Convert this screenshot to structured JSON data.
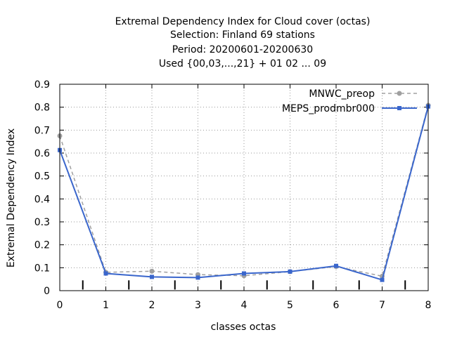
{
  "chart_data": {
    "type": "line",
    "title_lines": [
      "Extremal Dependency Index  for Cloud cover (octas)",
      "Selection: Finland     69 stations",
      "Period: 20200601-20200630",
      "Used {00,03,...,21} + 01 02 ... 09"
    ],
    "xlabel": "classes octas",
    "ylabel": "Extremal Dependency Index",
    "xlim": [
      0,
      8
    ],
    "ylim": [
      0,
      0.9
    ],
    "xticks": [
      "0",
      "1",
      "2",
      "3",
      "4",
      "5",
      "6",
      "7",
      "8"
    ],
    "yticks": [
      "0",
      "0.1",
      "0.2",
      "0.3",
      "0.4",
      "0.5",
      "0.6",
      "0.7",
      "0.8",
      "0.9"
    ],
    "grid": true,
    "legend_position": "top-right",
    "x": [
      0,
      1,
      2,
      3,
      4,
      5,
      6,
      7,
      8
    ],
    "series": [
      {
        "name": "MNWC_preop",
        "color": "#a0a0a0",
        "dashed": true,
        "values": [
          0.675,
          0.08,
          0.085,
          0.07,
          0.065,
          0.083,
          0.105,
          0.063,
          0.808
        ]
      },
      {
        "name": "MEPS_prodmbr000",
        "color": "#3a66cc",
        "dashed": false,
        "values": [
          0.613,
          0.075,
          0.06,
          0.057,
          0.075,
          0.083,
          0.108,
          0.047,
          0.803
        ]
      }
    ],
    "marker_positions": [
      0.5,
      1.5,
      2.5,
      3.5,
      4.5,
      5.5,
      6.5,
      7.5
    ]
  }
}
